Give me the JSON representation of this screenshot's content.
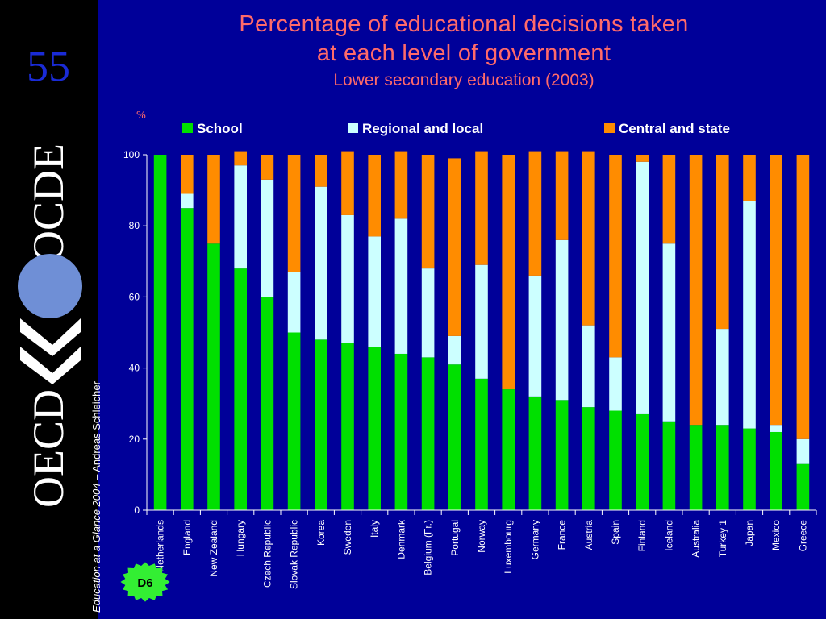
{
  "slide": {
    "number": "55",
    "logo_text": "OECD OCDE",
    "credit_italic": "Education at a Glance 2004",
    "credit_rest": " – Andreas Schleicher",
    "badge": "D6"
  },
  "colors": {
    "background": "#000099",
    "sidebar": "#000000",
    "title": "#ff6a6a",
    "school": "#00e000",
    "regional": "#ccffff",
    "central": "#ff8c00"
  },
  "chart_data": {
    "type": "bar",
    "stacked": true,
    "title": "Percentage of educational decisions taken at each level of government",
    "title_lines": [
      "Percentage of educational decisions taken",
      "at each level of government"
    ],
    "subtitle": "Lower secondary education (2003)",
    "ylabel": "%",
    "xlabel": "",
    "ylim": [
      0,
      100
    ],
    "yticks": [
      0,
      20,
      40,
      60,
      80,
      100
    ],
    "legend_position": "top",
    "categories": [
      "Netherlands",
      "England",
      "New Zealand",
      "Hungary",
      "Czech Republic",
      "Slovak Republic",
      "Korea",
      "Sweden",
      "Italy",
      "Denmark",
      "Belgium (Fr.)",
      "Portugal",
      "Norway",
      "Luxembourg",
      "Germany",
      "France",
      "Austria",
      "Spain",
      "Finland",
      "Iceland",
      "Australia",
      "Turkey 1",
      "Japan",
      "Mexico",
      "Greece"
    ],
    "series": [
      {
        "name": "School",
        "color": "#00e000",
        "values": [
          100,
          85,
          75,
          68,
          60,
          50,
          48,
          47,
          46,
          44,
          43,
          41,
          37,
          34,
          32,
          31,
          29,
          28,
          27,
          25,
          24,
          24,
          23,
          22,
          13
        ]
      },
      {
        "name": "Regional and local",
        "color": "#ccffff",
        "values": [
          0,
          4,
          0,
          29,
          33,
          17,
          43,
          36,
          31,
          38,
          25,
          8,
          32,
          0,
          34,
          45,
          23,
          15,
          71,
          50,
          0,
          27,
          64,
          2,
          7
        ]
      },
      {
        "name": "Central and state",
        "color": "#ff8c00",
        "values": [
          0,
          11,
          25,
          4,
          7,
          33,
          9,
          18,
          23,
          19,
          32,
          50,
          32,
          66,
          35,
          25,
          49,
          57,
          2,
          25,
          76,
          49,
          13,
          76,
          80
        ]
      }
    ]
  }
}
